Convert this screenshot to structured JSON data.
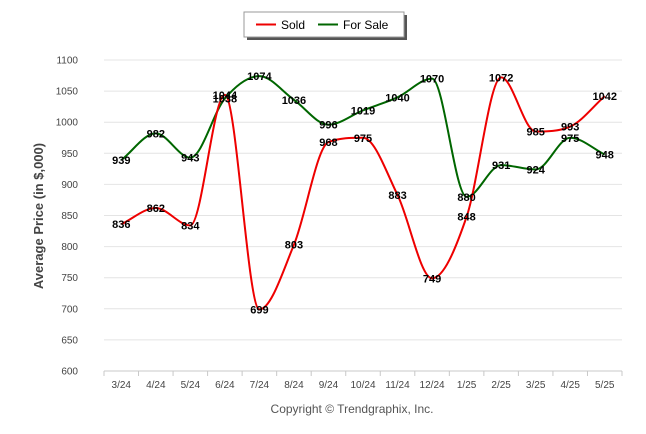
{
  "chart_data": {
    "type": "line",
    "categories": [
      "3/24",
      "4/24",
      "5/24",
      "6/24",
      "7/24",
      "8/24",
      "9/24",
      "10/24",
      "11/24",
      "12/24",
      "1/25",
      "2/25",
      "3/25",
      "4/25",
      "5/25"
    ],
    "series": [
      {
        "name": "Sold",
        "color": "#ee0000",
        "values": [
          836,
          862,
          834,
          1044,
          699,
          803,
          968,
          975,
          883,
          749,
          848,
          1072,
          985,
          993,
          1042
        ]
      },
      {
        "name": "For Sale",
        "color": "#006600",
        "values": [
          939,
          982,
          943,
          1038,
          1074,
          1036,
          996,
          1019,
          1040,
          1070,
          880,
          931,
          924,
          975,
          948
        ]
      }
    ],
    "ylabel": "Average Price (in $,000)",
    "xlabel": "",
    "ylim": [
      600,
      1100
    ],
    "yticks": [
      600,
      650,
      700,
      750,
      800,
      850,
      900,
      950,
      1000,
      1050,
      1100
    ],
    "grid": true,
    "legend_position": "top-center",
    "smooth": true
  },
  "credit": "Copyright © Trendgraphix, Inc."
}
